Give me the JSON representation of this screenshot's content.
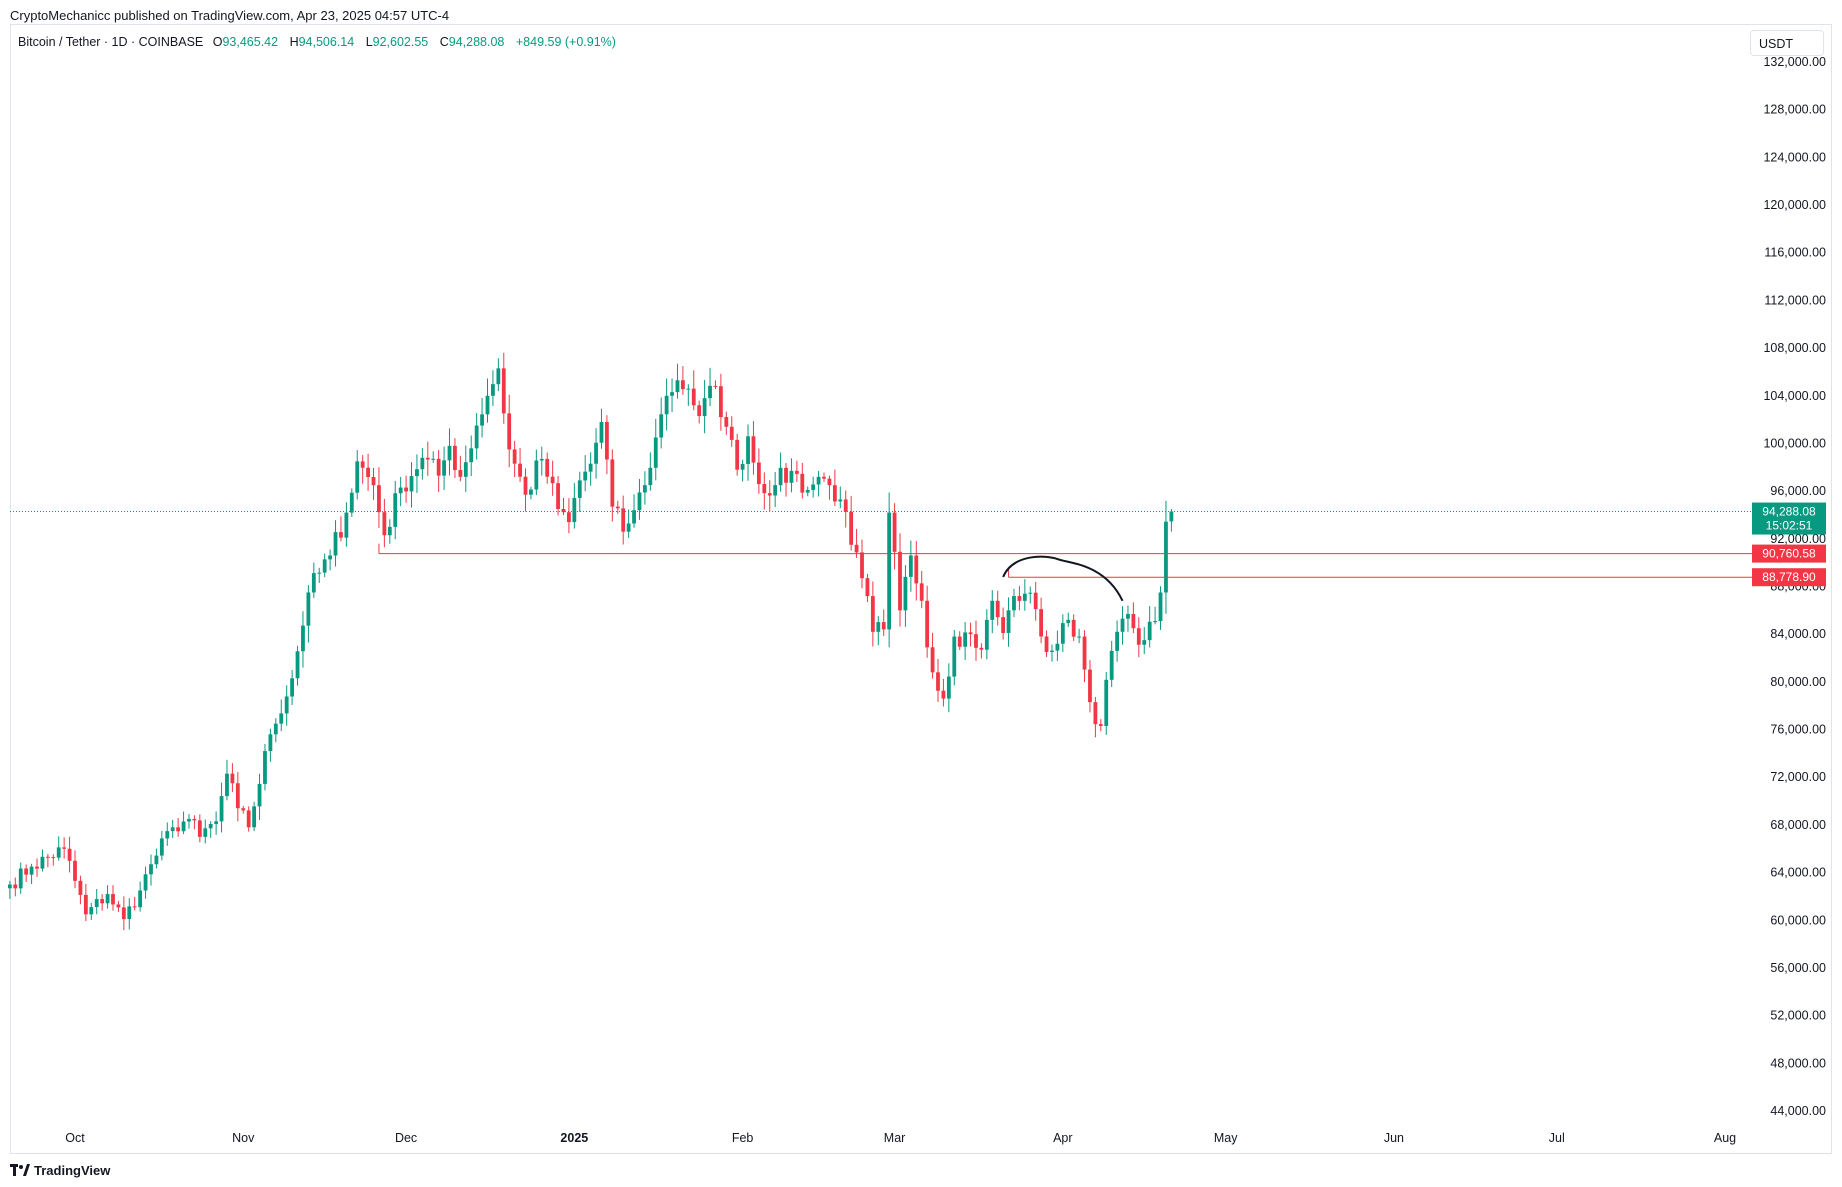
{
  "header": {
    "publisher_line": "CryptoMechanicc published on TradingView.com, Apr 23, 2025 04:57 UTC-4",
    "symbol": "Bitcoin / Tether · 1D · COINBASE",
    "open_label": "O",
    "open": "93,465.42",
    "high_label": "H",
    "high": "94,506.14",
    "low_label": "L",
    "low": "92,602.55",
    "close_label": "C",
    "close": "94,288.08",
    "change": "+849.59 (+0.91%)"
  },
  "unit": "USDT",
  "footer": {
    "brand": "TradingView"
  },
  "colors": {
    "up": "#089981",
    "down": "#f23645",
    "level": "#f23645",
    "text": "#131722",
    "grid": "#e0e3eb"
  },
  "chart_data": {
    "type": "candlestick",
    "y_axis": {
      "ticks": [
        "132,000.00",
        "128,000.00",
        "124,000.00",
        "120,000.00",
        "116,000.00",
        "112,000.00",
        "108,000.00",
        "104,000.00",
        "100,000.00",
        "96,000.00",
        "92,000.00",
        "88,000.00",
        "84,000.00",
        "80,000.00",
        "76,000.00",
        "72,000.00",
        "68,000.00",
        "64,000.00",
        "60,000.00",
        "56,000.00",
        "52,000.00",
        "48,000.00",
        "44,000.00"
      ],
      "tick_values": [
        132000,
        128000,
        124000,
        120000,
        116000,
        112000,
        108000,
        104000,
        100000,
        96000,
        92000,
        88000,
        84000,
        80000,
        76000,
        72000,
        68000,
        64000,
        60000,
        56000,
        52000,
        48000,
        44000
      ],
      "range": [
        42000,
        132500
      ]
    },
    "x_axis": {
      "labels": [
        "Oct",
        "Nov",
        "Dec",
        "2025",
        "Feb",
        "Mar",
        "Apr",
        "May",
        "Jun",
        "Jul",
        "Aug"
      ],
      "label_days": [
        0,
        31,
        61,
        92,
        123,
        151,
        182,
        212,
        243,
        273,
        304
      ],
      "bold_labels": [
        "2025"
      ],
      "range_days": [
        -12,
        316
      ]
    },
    "last_price": {
      "value": 94288.08,
      "label": "94,288.08",
      "countdown": "15:02:51"
    },
    "levels": [
      {
        "value": 90760.58,
        "label": "90,760.58",
        "start_day": 56
      },
      {
        "value": 88778.9,
        "label": "88,778.90",
        "start_day": 172
      }
    ],
    "arc_annotation": {
      "start_day": 171,
      "start_price": 88800,
      "peak_day": 181,
      "peak_price": 90300,
      "end_day": 193,
      "end_price": 86800
    },
    "anchors": [
      {
        "day": -12,
        "price": 63000
      },
      {
        "day": -8,
        "price": 64500
      },
      {
        "day": -2,
        "price": 66000
      },
      {
        "day": 2,
        "price": 60500
      },
      {
        "day": 6,
        "price": 62200
      },
      {
        "day": 9,
        "price": 60100
      },
      {
        "day": 12,
        "price": 62500
      },
      {
        "day": 14,
        "price": 64700
      },
      {
        "day": 18,
        "price": 67800
      },
      {
        "day": 21,
        "price": 68500
      },
      {
        "day": 23,
        "price": 67000
      },
      {
        "day": 26,
        "price": 68300
      },
      {
        "day": 28,
        "price": 72300
      },
      {
        "day": 30,
        "price": 69400
      },
      {
        "day": 32,
        "price": 67800
      },
      {
        "day": 36,
        "price": 75600
      },
      {
        "day": 40,
        "price": 80300
      },
      {
        "day": 43,
        "price": 87500
      },
      {
        "day": 47,
        "price": 90600
      },
      {
        "day": 50,
        "price": 94200
      },
      {
        "day": 52,
        "price": 98500
      },
      {
        "day": 55,
        "price": 96500
      },
      {
        "day": 57,
        "price": 92300
      },
      {
        "day": 60,
        "price": 96300
      },
      {
        "day": 64,
        "price": 98800
      },
      {
        "day": 67,
        "price": 97300
      },
      {
        "day": 69,
        "price": 99800
      },
      {
        "day": 71,
        "price": 97200
      },
      {
        "day": 74,
        "price": 101500
      },
      {
        "day": 76,
        "price": 104000
      },
      {
        "day": 78,
        "price": 106300
      },
      {
        "day": 80,
        "price": 99500
      },
      {
        "day": 83,
        "price": 95700
      },
      {
        "day": 86,
        "price": 98700
      },
      {
        "day": 89,
        "price": 94500
      },
      {
        "day": 91,
        "price": 93400
      },
      {
        "day": 93,
        "price": 96900
      },
      {
        "day": 95,
        "price": 98300
      },
      {
        "day": 97,
        "price": 101800
      },
      {
        "day": 99,
        "price": 94700
      },
      {
        "day": 101,
        "price": 92600
      },
      {
        "day": 103,
        "price": 94400
      },
      {
        "day": 105,
        "price": 96500
      },
      {
        "day": 107,
        "price": 100500
      },
      {
        "day": 109,
        "price": 104000
      },
      {
        "day": 111,
        "price": 105300
      },
      {
        "day": 113,
        "price": 104600
      },
      {
        "day": 115,
        "price": 102300
      },
      {
        "day": 118,
        "price": 104800
      },
      {
        "day": 120,
        "price": 101400
      },
      {
        "day": 122,
        "price": 97800
      },
      {
        "day": 124,
        "price": 100600
      },
      {
        "day": 126,
        "price": 96600
      },
      {
        "day": 129,
        "price": 96500
      },
      {
        "day": 132,
        "price": 97700
      },
      {
        "day": 135,
        "price": 96100
      },
      {
        "day": 137,
        "price": 97200
      },
      {
        "day": 139,
        "price": 96500
      },
      {
        "day": 141,
        "price": 95300
      },
      {
        "day": 143,
        "price": 91500
      },
      {
        "day": 145,
        "price": 88700
      },
      {
        "day": 147,
        "price": 84200
      },
      {
        "day": 149,
        "price": 84400
      },
      {
        "day": 150,
        "price": 94200
      },
      {
        "day": 152,
        "price": 86000
      },
      {
        "day": 154,
        "price": 90600
      },
      {
        "day": 156,
        "price": 86800
      },
      {
        "day": 158,
        "price": 80800
      },
      {
        "day": 160,
        "price": 78600
      },
      {
        "day": 162,
        "price": 83800
      },
      {
        "day": 165,
        "price": 84000
      },
      {
        "day": 167,
        "price": 82700
      },
      {
        "day": 169,
        "price": 86800
      },
      {
        "day": 171,
        "price": 84100
      },
      {
        "day": 173,
        "price": 87200
      },
      {
        "day": 175,
        "price": 87400
      },
      {
        "day": 177,
        "price": 86100
      },
      {
        "day": 179,
        "price": 82500
      },
      {
        "day": 181,
        "price": 83200
      },
      {
        "day": 183,
        "price": 85200
      },
      {
        "day": 185,
        "price": 83800
      },
      {
        "day": 187,
        "price": 78300
      },
      {
        "day": 189,
        "price": 76300
      },
      {
        "day": 191,
        "price": 82600
      },
      {
        "day": 193,
        "price": 85300
      },
      {
        "day": 195,
        "price": 84500
      },
      {
        "day": 197,
        "price": 83500
      },
      {
        "day": 199,
        "price": 85100
      },
      {
        "day": 200,
        "price": 87500
      },
      {
        "day": 201,
        "price": 93440
      },
      {
        "day": 202,
        "price": 94288
      }
    ]
  }
}
